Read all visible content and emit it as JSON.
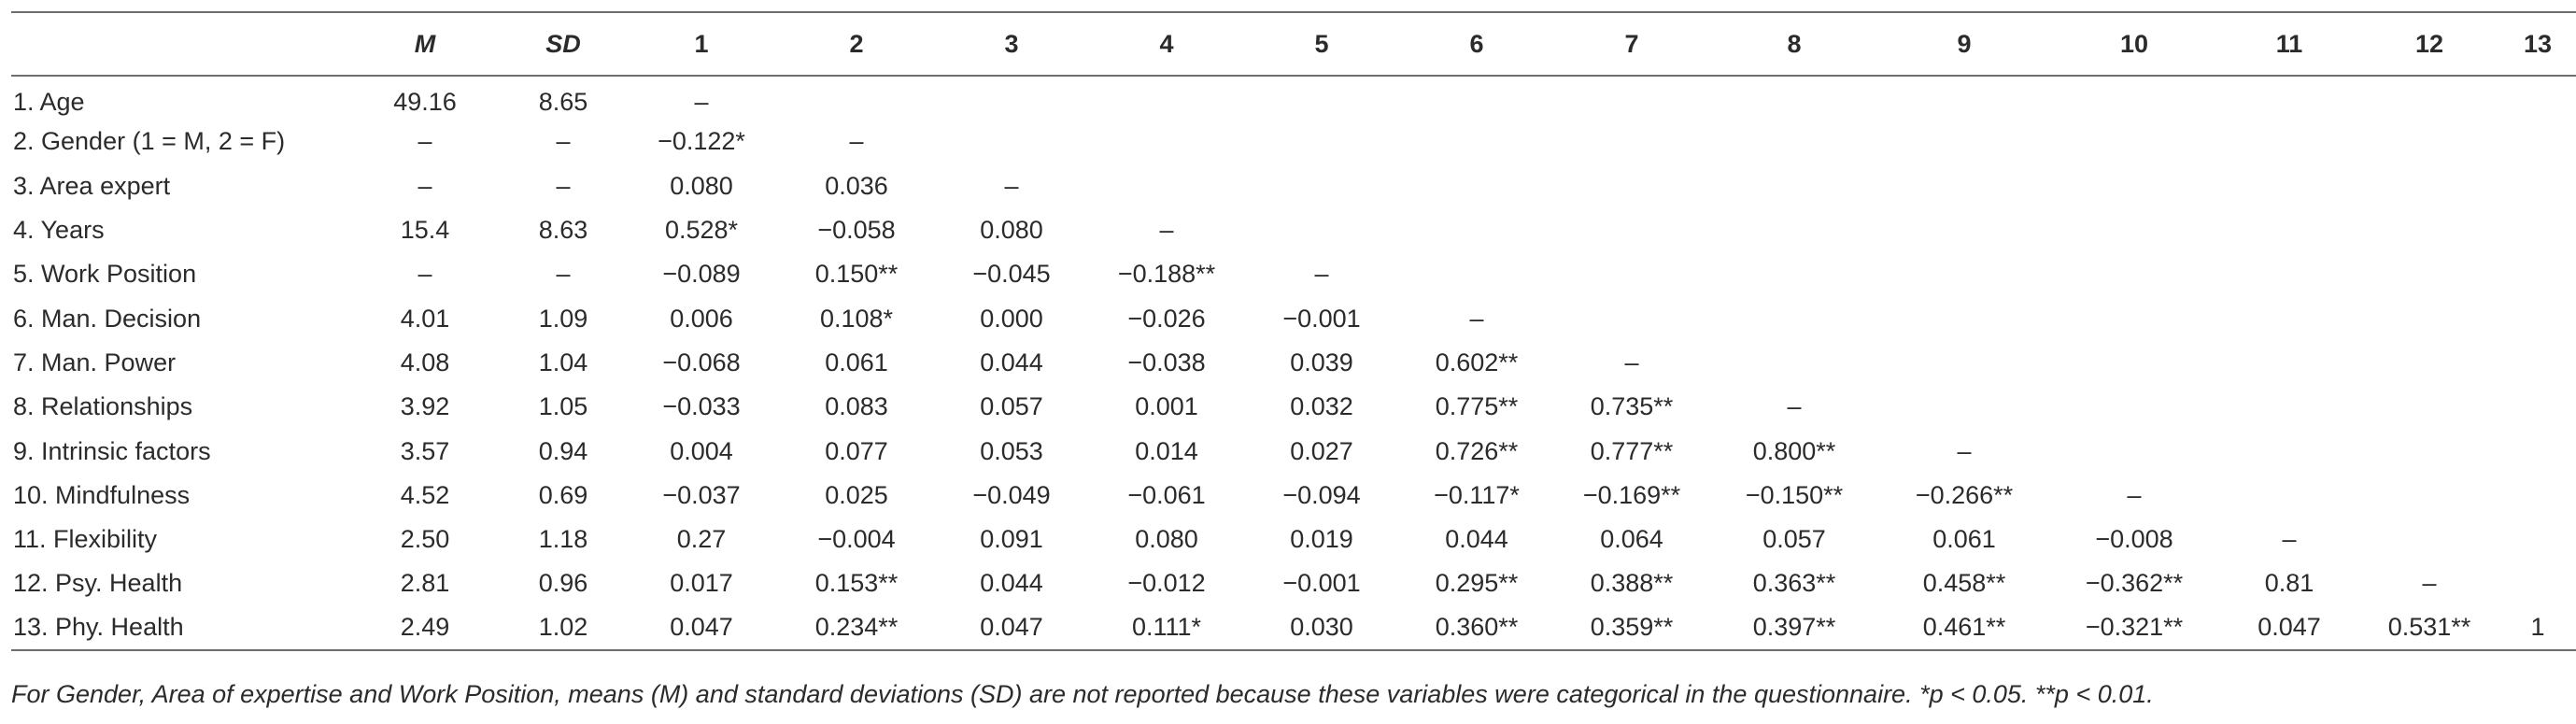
{
  "table": {
    "headers": [
      "",
      "M",
      "SD",
      "1",
      "2",
      "3",
      "4",
      "5",
      "6",
      "7",
      "8",
      "9",
      "10",
      "11",
      "12",
      "13"
    ],
    "rows": [
      [
        "1. Age",
        "49.16",
        "8.65",
        "–",
        "",
        "",
        "",
        "",
        "",
        "",
        "",
        "",
        "",
        "",
        "",
        ""
      ],
      [
        "2. Gender (1 = M, 2 = F)",
        "–",
        "–",
        "−0.122*",
        "–",
        "",
        "",
        "",
        "",
        "",
        "",
        "",
        "",
        "",
        "",
        ""
      ],
      [
        "3. Area expert",
        "–",
        "–",
        "0.080",
        "0.036",
        "–",
        "",
        "",
        "",
        "",
        "",
        "",
        "",
        "",
        "",
        ""
      ],
      [
        "4. Years",
        "15.4",
        "8.63",
        "0.528*",
        "−0.058",
        "0.080",
        "–",
        "",
        "",
        "",
        "",
        "",
        "",
        "",
        "",
        ""
      ],
      [
        "5. Work Position",
        "–",
        "–",
        "−0.089",
        "0.150**",
        "−0.045",
        "−0.188**",
        "–",
        "",
        "",
        "",
        "",
        "",
        "",
        "",
        ""
      ],
      [
        "6. Man. Decision",
        "4.01",
        "1.09",
        "0.006",
        "0.108*",
        "0.000",
        "−0.026",
        "−0.001",
        "–",
        "",
        "",
        "",
        "",
        "",
        "",
        ""
      ],
      [
        "7. Man. Power",
        "4.08",
        "1.04",
        "−0.068",
        "0.061",
        "0.044",
        "−0.038",
        "0.039",
        "0.602**",
        "–",
        "",
        "",
        "",
        "",
        "",
        ""
      ],
      [
        "8. Relationships",
        "3.92",
        "1.05",
        "−0.033",
        "0.083",
        "0.057",
        "0.001",
        "0.032",
        "0.775**",
        "0.735**",
        "–",
        "",
        "",
        "",
        "",
        ""
      ],
      [
        "9. Intrinsic factors",
        "3.57",
        "0.94",
        "0.004",
        "0.077",
        "0.053",
        "0.014",
        "0.027",
        "0.726**",
        "0.777**",
        "0.800**",
        "–",
        "",
        "",
        "",
        ""
      ],
      [
        "10. Mindfulness",
        "4.52",
        "0.69",
        "−0.037",
        "0.025",
        "−0.049",
        "−0.061",
        "−0.094",
        "−0.117*",
        "−0.169**",
        "−0.150**",
        "−0.266**",
        "–",
        "",
        "",
        ""
      ],
      [
        "11. Flexibility",
        "2.50",
        "1.18",
        "0.27",
        "−0.004",
        "0.091",
        "0.080",
        "0.019",
        "0.044",
        "0.064",
        "0.057",
        "0.061",
        "−0.008",
        "–",
        "",
        ""
      ],
      [
        "12. Psy. Health",
        "2.81",
        "0.96",
        "0.017",
        "0.153**",
        "0.044",
        "−0.012",
        "−0.001",
        "0.295**",
        "0.388**",
        "0.363**",
        "0.458**",
        "−0.362**",
        "0.81",
        "–",
        ""
      ],
      [
        "13. Phy. Health",
        "2.49",
        "1.02",
        "0.047",
        "0.234**",
        "0.047",
        "0.111*",
        "0.030",
        "0.360**",
        "0.359**",
        "0.397**",
        "0.461**",
        "−0.321**",
        "0.047",
        "0.531**",
        "1"
      ]
    ]
  },
  "footnote": "For Gender, Area of expertise and Work Position, means (M) and standard deviations (SD) are not reported because these variables were categorical in the questionnaire. *p < 0.05. **p < 0.01."
}
